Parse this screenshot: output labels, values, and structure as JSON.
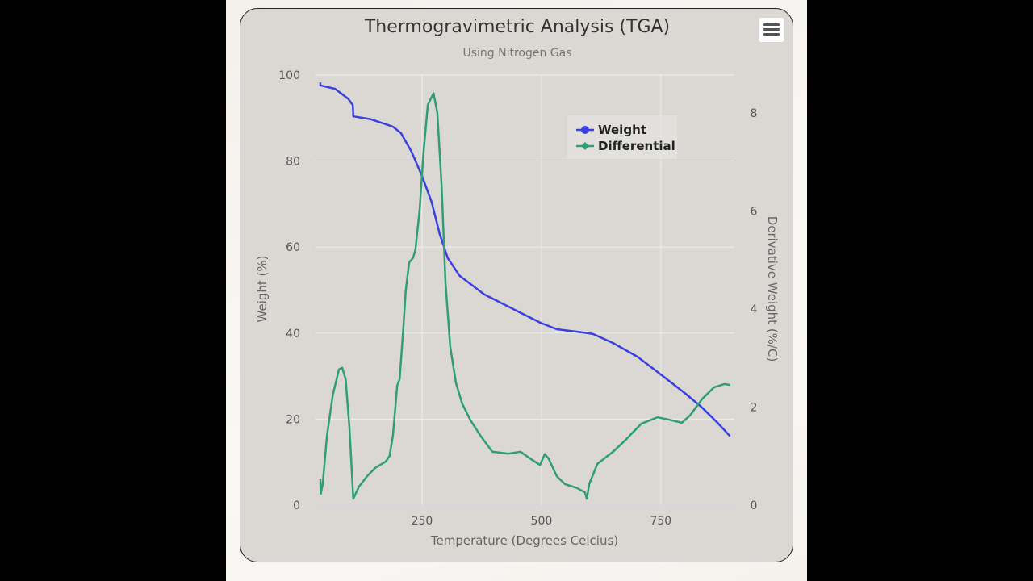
{
  "chart_data": {
    "type": "line",
    "title": "Thermogravimetric Analysis (TGA)",
    "subtitle": "Using Nitrogen Gas",
    "xlabel": "Temperature (Degrees Celcius)",
    "ylabel": "Weight (%)",
    "y2label": "Derivative Weight (%/C)",
    "xlim": [
      27,
      904
    ],
    "ylim": [
      0,
      100
    ],
    "y2lim": [
      0,
      8.77
    ],
    "xticks": [
      250,
      500,
      750
    ],
    "yticks": [
      0,
      20,
      40,
      60,
      80,
      100
    ],
    "y2ticks": [
      0,
      2,
      4,
      6,
      8
    ],
    "grid": true,
    "legend": "top-right",
    "series": [
      {
        "name": "Weight",
        "axis": "left",
        "color": "#3a3fe0",
        "x": [
          37,
          37,
          68,
          96,
          105,
          106,
          144,
          189,
          206,
          228,
          250,
          270,
          287,
          304,
          329,
          380,
          448,
          498,
          532,
          583,
          608,
          650,
          701,
          752,
          802,
          836,
          870,
          895
        ],
        "y": [
          98.3,
          97.6,
          96.8,
          94.4,
          93,
          90.4,
          89.7,
          88,
          86.5,
          82.2,
          76.5,
          70.5,
          63,
          57.4,
          53.3,
          49,
          45.2,
          42.4,
          40.9,
          40.2,
          39.8,
          37.7,
          34.5,
          30.2,
          25.9,
          22.7,
          19,
          16
        ]
      },
      {
        "name": "Differential",
        "axis": "right",
        "color": "#2e9e78",
        "x": [
          37,
          38,
          42,
          51,
          63,
          76,
          83,
          90,
          98,
          106,
          118,
          135,
          152,
          174,
          182,
          189,
          198,
          203,
          211,
          216,
          223,
          231,
          236,
          245,
          253,
          262,
          274,
          282,
          291,
          299,
          309,
          321,
          334,
          351,
          372,
          397,
          431,
          456,
          481,
          497,
          507,
          515,
          532,
          549,
          574,
          591,
          595,
          600,
          617,
          650,
          676,
          709,
          743,
          769,
          794,
          811,
          836,
          861,
          883,
          895
        ],
        "y": [
          0.54,
          0.23,
          0.43,
          1.42,
          2.24,
          2.77,
          2.8,
          2.57,
          1.58,
          0.13,
          0.38,
          0.59,
          0.76,
          0.89,
          1.0,
          1.42,
          2.44,
          2.57,
          3.64,
          4.38,
          4.95,
          5.04,
          5.2,
          6.02,
          7.18,
          8.16,
          8.4,
          8.0,
          6.52,
          4.54,
          3.23,
          2.49,
          2.07,
          1.74,
          1.42,
          1.09,
          1.05,
          1.09,
          0.92,
          0.82,
          1.04,
          0.95,
          0.59,
          0.43,
          0.35,
          0.26,
          0.13,
          0.43,
          0.84,
          1.09,
          1.33,
          1.66,
          1.79,
          1.74,
          1.68,
          1.83,
          2.16,
          2.4,
          2.47,
          2.45
        ]
      }
    ]
  },
  "menu_icon": "hamburger-menu-icon"
}
